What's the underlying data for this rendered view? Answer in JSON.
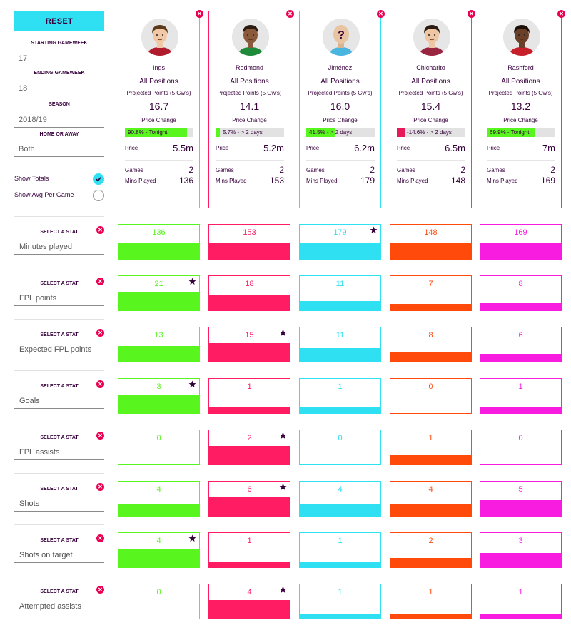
{
  "sidebar": {
    "reset_label": "RESET",
    "starting_gameweek_label": "STARTING GAMEWEEK",
    "starting_gameweek_value": "17",
    "ending_gameweek_label": "ENDING GAMEWEEK",
    "ending_gameweek_value": "18",
    "season_label": "SEASON",
    "season_value": "2018/19",
    "home_away_label": "HOME OR AWAY",
    "home_away_value": "Both",
    "show_totals_label": "Show Totals",
    "show_totals_checked": true,
    "show_avg_label": "Show Avg Per Game",
    "show_avg_checked": false
  },
  "players": [
    {
      "name": "Ings",
      "position": "All Positions",
      "projected_label": "Projected Points (5 Gw's)",
      "projected": "16.7",
      "price_change_label": "Price Change",
      "price_change_text": "90.8% - Tonight",
      "price_change_pct": 90.8,
      "price_change_dir": "up",
      "price_label": "Price",
      "price": "5.5m",
      "games_label": "Games",
      "games": "2",
      "mins_label": "Mins Played",
      "mins": "136",
      "color": "#59f51e",
      "skin": "#f2c7a5",
      "hair": "#5a3a1a",
      "shirt": "#b01c2e",
      "mystery": false
    },
    {
      "name": "Redmond",
      "position": "All Positions",
      "projected_label": "Projected Points (5 Gw's)",
      "projected": "14.1",
      "price_change_label": "Price Change",
      "price_change_text": "5.7% - > 2 days",
      "price_change_pct": 5.7,
      "price_change_dir": "up",
      "price_label": "Price",
      "price": "5.2m",
      "games_label": "Games",
      "games": "2",
      "mins_label": "Mins Played",
      "mins": "153",
      "color": "#ff1c63",
      "skin": "#8a5a3c",
      "hair": "#2a1a10",
      "shirt": "#1e8a3a",
      "mystery": false
    },
    {
      "name": "Jiménez",
      "position": "All Positions",
      "projected_label": "Projected Points (5 Gw's)",
      "projected": "16.0",
      "price_change_label": "Price Change",
      "price_change_text": "41.5% - > 2 days",
      "price_change_pct": 41.5,
      "price_change_dir": "up",
      "price_label": "Price",
      "price": "6.2m",
      "games_label": "Games",
      "games": "2",
      "mins_label": "Mins Played",
      "mins": "179",
      "color": "#2fe0f3",
      "skin": "#e8c4a0",
      "hair": "#e8c4a0",
      "shirt": "#4ab6e0",
      "mystery": true
    },
    {
      "name": "Chicharito",
      "position": "All Positions",
      "projected_label": "Projected Points (5 Gw's)",
      "projected": "15.4",
      "price_change_label": "Price Change",
      "price_change_text": "-14.6% - > 2 days",
      "price_change_pct": 14.6,
      "price_change_dir": "down",
      "price_label": "Price",
      "price": "6.5m",
      "games_label": "Games",
      "games": "2",
      "mins_label": "Mins Played",
      "mins": "148",
      "color": "#ff4a0c",
      "skin": "#efc6a4",
      "hair": "#2a1a10",
      "shirt": "#9a2540",
      "mystery": false
    },
    {
      "name": "Rashford",
      "position": "All Positions",
      "projected_label": "Projected Points (5 Gw's)",
      "projected": "13.2",
      "price_change_label": "Price Change",
      "price_change_text": "69.9% - Tonight",
      "price_change_pct": 69.9,
      "price_change_dir": "up",
      "price_label": "Price",
      "price": "7m",
      "games_label": "Games",
      "games": "2",
      "mins_label": "Mins Played",
      "mins": "169",
      "color": "#f81ce0",
      "skin": "#6b4028",
      "hair": "#1a0e08",
      "shirt": "#c8202a",
      "mystery": false
    }
  ],
  "colors": {
    "up_fill": "#59f51e",
    "down_fill": "#e8195a",
    "remove": "#e90052",
    "accent": "#2fe0f3",
    "star": "#37003c"
  },
  "stat_select_label": "SELECT A STAT",
  "stats": [
    {
      "name": "Minutes played",
      "values": [
        136,
        153,
        179,
        148,
        169
      ],
      "fill": [
        0.46,
        0.46,
        0.46,
        0.46,
        0.46
      ],
      "best": 2
    },
    {
      "name": "FPL points",
      "values": [
        21,
        18,
        11,
        7,
        8
      ],
      "fill": [
        0.54,
        0.46,
        0.28,
        0.18,
        0.2
      ],
      "best": 0
    },
    {
      "name": "Expected FPL points",
      "values": [
        13,
        15,
        11,
        8,
        6
      ],
      "fill": [
        0.46,
        0.54,
        0.4,
        0.29,
        0.22
      ],
      "best": 1
    },
    {
      "name": "Goals",
      "values": [
        3,
        1,
        1,
        0,
        1
      ],
      "fill": [
        0.54,
        0.18,
        0.18,
        0,
        0.18
      ],
      "best": 0
    },
    {
      "name": "FPL assists",
      "values": [
        0,
        2,
        0,
        1,
        0
      ],
      "fill": [
        0,
        0.54,
        0,
        0.27,
        0
      ],
      "best": 1
    },
    {
      "name": "Shots",
      "values": [
        4,
        6,
        4,
        4,
        5
      ],
      "fill": [
        0.36,
        0.54,
        0.36,
        0.36,
        0.45
      ],
      "best": 1
    },
    {
      "name": "Shots on target",
      "values": [
        4,
        1,
        1,
        2,
        3
      ],
      "fill": [
        0.54,
        0.14,
        0.14,
        0.27,
        0.41
      ],
      "best": 0
    },
    {
      "name": "Attempted assists",
      "values": [
        0,
        4,
        1,
        1,
        1
      ],
      "fill": [
        0,
        0.54,
        0.14,
        0.14,
        0.14
      ],
      "best": 1
    }
  ]
}
